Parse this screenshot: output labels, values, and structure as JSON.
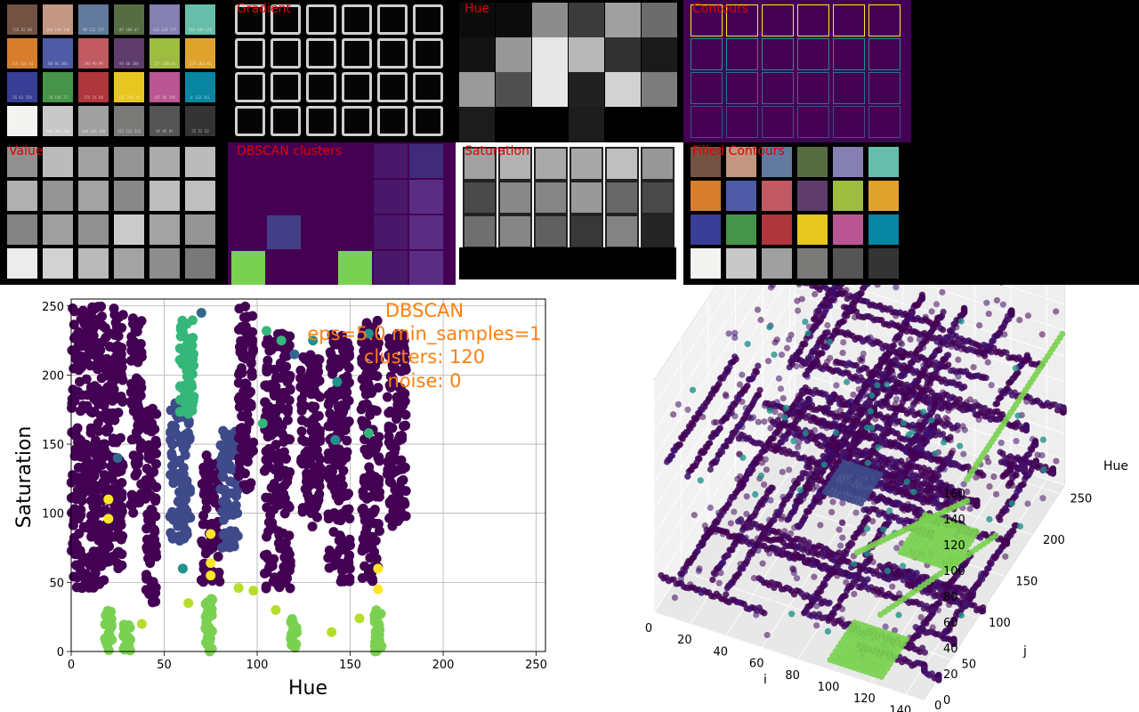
{
  "panels": [
    {
      "id": "original",
      "title": "",
      "kind": "color"
    },
    {
      "id": "gradient",
      "title": "Gradient",
      "kind": "gradient"
    },
    {
      "id": "hue",
      "title": "Hue",
      "kind": "hue"
    },
    {
      "id": "contours",
      "title": "Contours",
      "kind": "contours"
    },
    {
      "id": "value",
      "title": "Value",
      "kind": "value"
    },
    {
      "id": "dbscan_clusters",
      "title": "DBSCAN clusters",
      "kind": "clusters"
    },
    {
      "id": "saturation",
      "title": "Saturation",
      "kind": "saturation"
    },
    {
      "id": "filled_contours",
      "title": "Filled Contours",
      "kind": "filled"
    }
  ],
  "swatches": [
    [
      "#735244",
      "#c29682",
      "#627a9d",
      "#576c43",
      "#8580b1",
      "#67bdaa"
    ],
    [
      "#d67e2c",
      "#505ba6",
      "#c15a63",
      "#5e3c6c",
      "#9dbc40",
      "#e0a32e"
    ],
    [
      "#383d96",
      "#469449",
      "#af363c",
      "#e7c71f",
      "#bb5695",
      "#0885a1"
    ],
    [
      "#f3f3f2",
      "#c8c8c8",
      "#a0a0a0",
      "#7a7a79",
      "#555555",
      "#343434"
    ]
  ],
  "swatch_labels": [
    [
      "115 82 68",
      "194 150 130",
      "98 122 157",
      "87 108 67",
      "133 128 177",
      "103 189 170"
    ],
    [
      "214 126 44",
      "80 91 166",
      "193 90 99",
      "94 60 108",
      "157 188 64",
      "224 163 46"
    ],
    [
      "56 61 150",
      "70 148 73",
      "175 54 60",
      "231 199 31",
      "187 86 149",
      "8 133 161"
    ],
    [
      "243 243 242",
      "200 200 200",
      "160 160 160",
      "122 122 121",
      "85 85 85",
      "52 52 52"
    ]
  ],
  "chart_data": [
    {
      "type": "scatter",
      "xlabel": "Hue",
      "ylabel": "Saturation",
      "xlim": [
        0,
        255
      ],
      "ylim": [
        0,
        255
      ],
      "xticks": [
        0,
        50,
        100,
        150,
        200,
        250
      ],
      "yticks": [
        0,
        50,
        100,
        150,
        200,
        250
      ],
      "grid": true,
      "annotation": [
        "DBSCAN",
        "eps=5.0 min_samples=1",
        "clusters: 120",
        "noise: 0"
      ],
      "annotation_color": "#ff7f0e",
      "colormap": "viridis",
      "clusters": [
        {
          "x_range": [
            0,
            18
          ],
          "y_range": [
            45,
            250
          ],
          "color": "#440154"
        },
        {
          "x_range": [
            18,
            28
          ],
          "y_range": [
            60,
            250
          ],
          "color": "#440154"
        },
        {
          "x_range": [
            32,
            38
          ],
          "y_range": [
            100,
            245
          ],
          "color": "#440154"
        },
        {
          "x_range": [
            40,
            46
          ],
          "y_range": [
            35,
            180
          ],
          "color": "#440154"
        },
        {
          "x_range": [
            53,
            64
          ],
          "y_range": [
            80,
            180
          ],
          "color": "#3e4a89"
        },
        {
          "x_range": [
            70,
            80
          ],
          "y_range": [
            50,
            145
          ],
          "color": "#440154"
        },
        {
          "x_range": [
            80,
            90
          ],
          "y_range": [
            75,
            160
          ],
          "color": "#3e4a89"
        },
        {
          "x_range": [
            90,
            98
          ],
          "y_range": [
            115,
            250
          ],
          "color": "#440154"
        },
        {
          "x_range": [
            104,
            118
          ],
          "y_range": [
            45,
            230
          ],
          "color": "#440154"
        },
        {
          "x_range": [
            123,
            134
          ],
          "y_range": [
            90,
            215
          ],
          "color": "#440154"
        },
        {
          "x_range": [
            138,
            150
          ],
          "y_range": [
            50,
            230
          ],
          "color": "#440154"
        },
        {
          "x_range": [
            156,
            166
          ],
          "y_range": [
            50,
            240
          ],
          "color": "#440154"
        },
        {
          "x_range": [
            170,
            180
          ],
          "y_range": [
            90,
            230
          ],
          "color": "#440154"
        },
        {
          "x_range": [
            58,
            66
          ],
          "y_range": [
            170,
            240
          ],
          "color": "#35b779"
        },
        {
          "x_range": [
            18,
            22
          ],
          "y_range": [
            0,
            30
          ],
          "color": "#7ad151"
        },
        {
          "x_range": [
            28,
            32
          ],
          "y_range": [
            0,
            20
          ],
          "color": "#7ad151"
        },
        {
          "x_range": [
            72,
            76
          ],
          "y_range": [
            0,
            40
          ],
          "color": "#7ad151"
        },
        {
          "x_range": [
            118,
            122
          ],
          "y_range": [
            0,
            25
          ],
          "color": "#7ad151"
        },
        {
          "x_range": [
            163,
            167
          ],
          "y_range": [
            0,
            30
          ],
          "color": "#7ad151"
        }
      ],
      "extra_points": [
        [
          20,
          110,
          "#fde725"
        ],
        [
          20,
          96,
          "#fde725"
        ],
        [
          75,
          85,
          "#fde725"
        ],
        [
          75,
          64,
          "#fde725"
        ],
        [
          75,
          55,
          "#fde725"
        ],
        [
          165,
          45,
          "#fde725"
        ],
        [
          165,
          60,
          "#fde725"
        ],
        [
          90,
          46,
          "#b5de2b"
        ],
        [
          98,
          44,
          "#b5de2b"
        ],
        [
          155,
          24,
          "#b5de2b"
        ],
        [
          140,
          14,
          "#b5de2b"
        ],
        [
          110,
          30,
          "#b5de2b"
        ],
        [
          63,
          35,
          "#b5de2b"
        ],
        [
          38,
          20,
          "#b5de2b"
        ],
        [
          143,
          195,
          "#21918c"
        ],
        [
          130,
          225,
          "#21918c"
        ],
        [
          160,
          230,
          "#21918c"
        ],
        [
          142,
          153,
          "#21918c"
        ],
        [
          120,
          215,
          "#31688e"
        ],
        [
          70,
          245,
          "#31688e"
        ],
        [
          25,
          140,
          "#31688e"
        ],
        [
          60,
          60,
          "#21918c"
        ],
        [
          113,
          225,
          "#35b779"
        ],
        [
          105,
          232,
          "#35b779"
        ],
        [
          103,
          165,
          "#35b779"
        ],
        [
          160,
          158,
          "#35b779"
        ]
      ]
    },
    {
      "type": "scatter",
      "projection": "3d",
      "xlabel": "i",
      "ylabel": "j",
      "zlabel": "Hue",
      "xticks": [
        0,
        20,
        40,
        60,
        80,
        100,
        120,
        140
      ],
      "yticks": [
        0,
        50,
        100,
        150,
        200,
        250
      ],
      "zticks": [
        0,
        20,
        40,
        60,
        80,
        100,
        120,
        140,
        160
      ],
      "xlim": [
        0,
        150
      ],
      "ylim": [
        0,
        260
      ],
      "zlim": [
        0,
        180
      ],
      "colormap": "viridis"
    }
  ]
}
